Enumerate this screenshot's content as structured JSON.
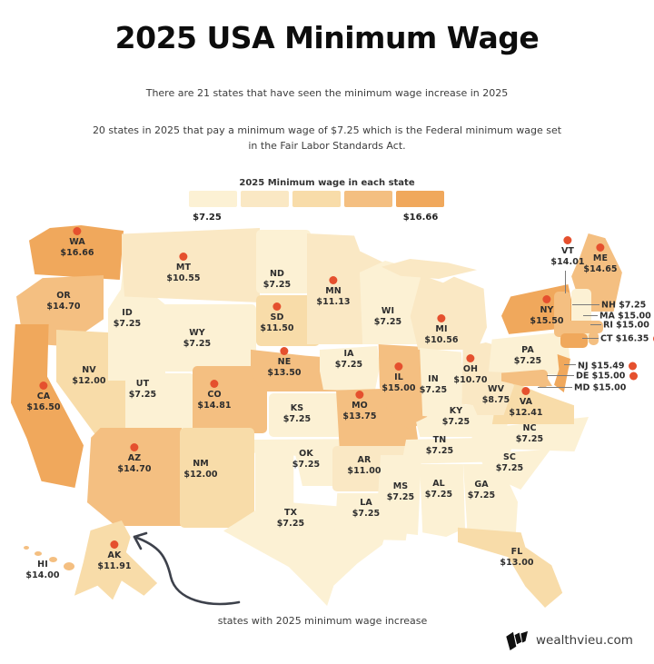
{
  "title": "2025 USA Minimum Wage",
  "subtitle1": "There are 21 states that have seen the minimum wage increase in 2025",
  "subtitle2": "20 states in 2025 that pay a minimum wage of $7.25 which is the Federal minimum wage set in the Fair Labor Standards Act.",
  "legend": {
    "title": "2025 Minimum wage in each state",
    "min_label": "$7.25",
    "max_label": "$16.66",
    "colors": [
      "#FCF1D4",
      "#FAE8C4",
      "#F8DCA9",
      "#F4BF81",
      "#F0A85C"
    ]
  },
  "annotation": "states with 2025 minimum wage increase",
  "footer": {
    "brand": "wealthvieu.com"
  },
  "colors": {
    "increase_dot": "#E5502E"
  },
  "chart_data": {
    "type": "choropleth-map",
    "title": "2025 Minimum wage in each state",
    "unit": "USD per hour",
    "value_range": [
      7.25,
      16.66
    ],
    "increase_count": 21,
    "federal_min_count": 20,
    "states": [
      {
        "abbr": "WA",
        "value": 16.66,
        "label": "$16.66",
        "increase": true
      },
      {
        "abbr": "OR",
        "value": 14.7,
        "label": "$14.70",
        "increase": false
      },
      {
        "abbr": "CA",
        "value": 16.5,
        "label": "$16.50",
        "increase": true
      },
      {
        "abbr": "NV",
        "value": 12.0,
        "label": "$12.00",
        "increase": false
      },
      {
        "abbr": "ID",
        "value": 7.25,
        "label": "$7.25",
        "increase": false
      },
      {
        "abbr": "MT",
        "value": 10.55,
        "label": "$10.55",
        "increase": true
      },
      {
        "abbr": "WY",
        "value": 7.25,
        "label": "$7.25",
        "increase": false
      },
      {
        "abbr": "UT",
        "value": 7.25,
        "label": "$7.25",
        "increase": false
      },
      {
        "abbr": "CO",
        "value": 14.81,
        "label": "$14.81",
        "increase": true
      },
      {
        "abbr": "AZ",
        "value": 14.7,
        "label": "$14.70",
        "increase": true
      },
      {
        "abbr": "NM",
        "value": 12.0,
        "label": "$12.00",
        "increase": false
      },
      {
        "abbr": "ND",
        "value": 7.25,
        "label": "$7.25",
        "increase": false
      },
      {
        "abbr": "SD",
        "value": 11.5,
        "label": "$11.50",
        "increase": true
      },
      {
        "abbr": "NE",
        "value": 13.5,
        "label": "$13.50",
        "increase": true
      },
      {
        "abbr": "KS",
        "value": 7.25,
        "label": "$7.25",
        "increase": false
      },
      {
        "abbr": "OK",
        "value": 7.25,
        "label": "$7.25",
        "increase": false
      },
      {
        "abbr": "TX",
        "value": 7.25,
        "label": "$7.25",
        "increase": false
      },
      {
        "abbr": "MN",
        "value": 11.13,
        "label": "$11.13",
        "increase": true
      },
      {
        "abbr": "IA",
        "value": 7.25,
        "label": "$7.25",
        "increase": false
      },
      {
        "abbr": "MO",
        "value": 13.75,
        "label": "$13.75",
        "increase": true
      },
      {
        "abbr": "AR",
        "value": 11.0,
        "label": "$11.00",
        "increase": false
      },
      {
        "abbr": "LA",
        "value": 7.25,
        "label": "$7.25",
        "increase": false
      },
      {
        "abbr": "WI",
        "value": 7.25,
        "label": "$7.25",
        "increase": false
      },
      {
        "abbr": "IL",
        "value": 15.0,
        "label": "$15.00",
        "increase": true
      },
      {
        "abbr": "MI",
        "value": 10.56,
        "label": "$10.56",
        "increase": true
      },
      {
        "abbr": "IN",
        "value": 7.25,
        "label": "$7.25",
        "increase": false
      },
      {
        "abbr": "OH",
        "value": 10.7,
        "label": "$10.70",
        "increase": true
      },
      {
        "abbr": "KY",
        "value": 7.25,
        "label": "$7.25",
        "increase": false
      },
      {
        "abbr": "TN",
        "value": 7.25,
        "label": "$7.25",
        "increase": false
      },
      {
        "abbr": "MS",
        "value": 7.25,
        "label": "$7.25",
        "increase": false
      },
      {
        "abbr": "AL",
        "value": 7.25,
        "label": "$7.25",
        "increase": false
      },
      {
        "abbr": "GA",
        "value": 7.25,
        "label": "$7.25",
        "increase": false
      },
      {
        "abbr": "FL",
        "value": 13.0,
        "label": "$13.00",
        "increase": false
      },
      {
        "abbr": "SC",
        "value": 7.25,
        "label": "$7.25",
        "increase": false
      },
      {
        "abbr": "NC",
        "value": 7.25,
        "label": "$7.25",
        "increase": false
      },
      {
        "abbr": "VA",
        "value": 12.41,
        "label": "$12.41",
        "increase": true
      },
      {
        "abbr": "WV",
        "value": 8.75,
        "label": "$8.75",
        "increase": false
      },
      {
        "abbr": "PA",
        "value": 7.25,
        "label": "$7.25",
        "increase": false
      },
      {
        "abbr": "NY",
        "value": 15.5,
        "label": "$15.50",
        "increase": true
      },
      {
        "abbr": "VT",
        "value": 14.01,
        "label": "$14.01",
        "increase": true
      },
      {
        "abbr": "ME",
        "value": 14.65,
        "label": "$14.65",
        "increase": true
      },
      {
        "abbr": "NH",
        "value": 7.25,
        "label": "$7.25",
        "increase": false,
        "callout": true
      },
      {
        "abbr": "MA",
        "value": 15.0,
        "label": "$15.00",
        "increase": false,
        "callout": true
      },
      {
        "abbr": "RI",
        "value": 15.0,
        "label": "$15.00",
        "increase": true,
        "callout": true
      },
      {
        "abbr": "CT",
        "value": 16.35,
        "label": "$16.35",
        "increase": true,
        "callout": true
      },
      {
        "abbr": "NJ",
        "value": 15.49,
        "label": "$15.49",
        "increase": true,
        "callout": true
      },
      {
        "abbr": "DE",
        "value": 15.0,
        "label": "$15.00",
        "increase": true,
        "callout": true
      },
      {
        "abbr": "MD",
        "value": 15.0,
        "label": "$15.00",
        "increase": false,
        "callout": true
      },
      {
        "abbr": "AK",
        "value": 11.91,
        "label": "$11.91",
        "increase": true
      },
      {
        "abbr": "HI",
        "value": 14.0,
        "label": "$14.00",
        "increase": false
      }
    ]
  }
}
